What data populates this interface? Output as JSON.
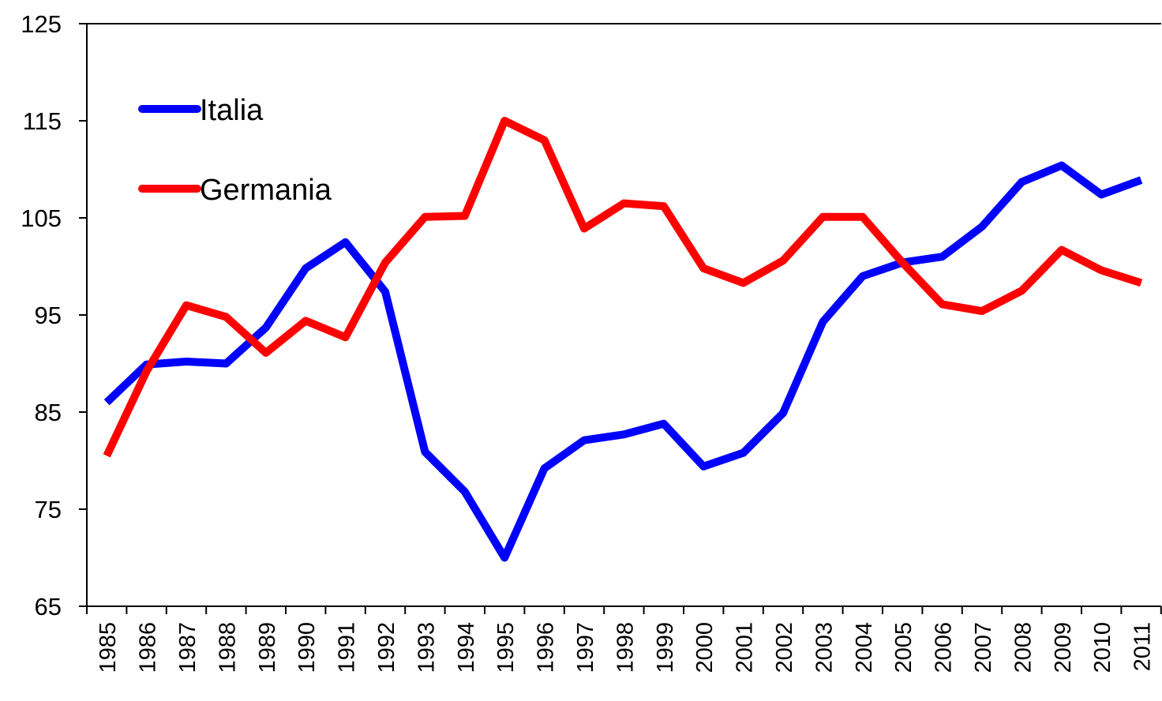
{
  "chart_data": {
    "type": "line",
    "categories": [
      "1985",
      "1986",
      "1987",
      "1988",
      "1989",
      "1990",
      "1991",
      "1992",
      "1993",
      "1994",
      "1995",
      "1996",
      "1997",
      "1998",
      "1999",
      "2000",
      "2001",
      "2002",
      "2003",
      "2004",
      "2005",
      "2006",
      "2007",
      "2008",
      "2009",
      "2010",
      "2011"
    ],
    "series": [
      {
        "name": "Italia",
        "color": "#0000ff",
        "values": [
          86.0,
          89.9,
          90.2,
          90.0,
          93.7,
          99.8,
          102.5,
          97.4,
          80.9,
          76.8,
          70.0,
          79.2,
          82.1,
          82.7,
          83.8,
          79.4,
          80.8,
          84.9,
          94.3,
          99.0,
          100.4,
          101.0,
          104.1,
          108.7,
          110.4,
          107.4,
          108.9
        ]
      },
      {
        "name": "Germania",
        "color": "#ff0000",
        "values": [
          80.5,
          89.2,
          96.0,
          94.8,
          91.1,
          94.4,
          92.7,
          100.4,
          105.1,
          105.2,
          115.0,
          113.0,
          103.9,
          106.5,
          106.2,
          99.8,
          98.3,
          100.6,
          105.1,
          105.1,
          100.4,
          96.1,
          95.4,
          97.5,
          101.7,
          99.6,
          98.3
        ]
      }
    ],
    "ylim": [
      65,
      125
    ],
    "yticks": [
      65,
      75,
      85,
      95,
      105,
      115,
      125
    ],
    "grid": false,
    "legend": "upper-left"
  }
}
